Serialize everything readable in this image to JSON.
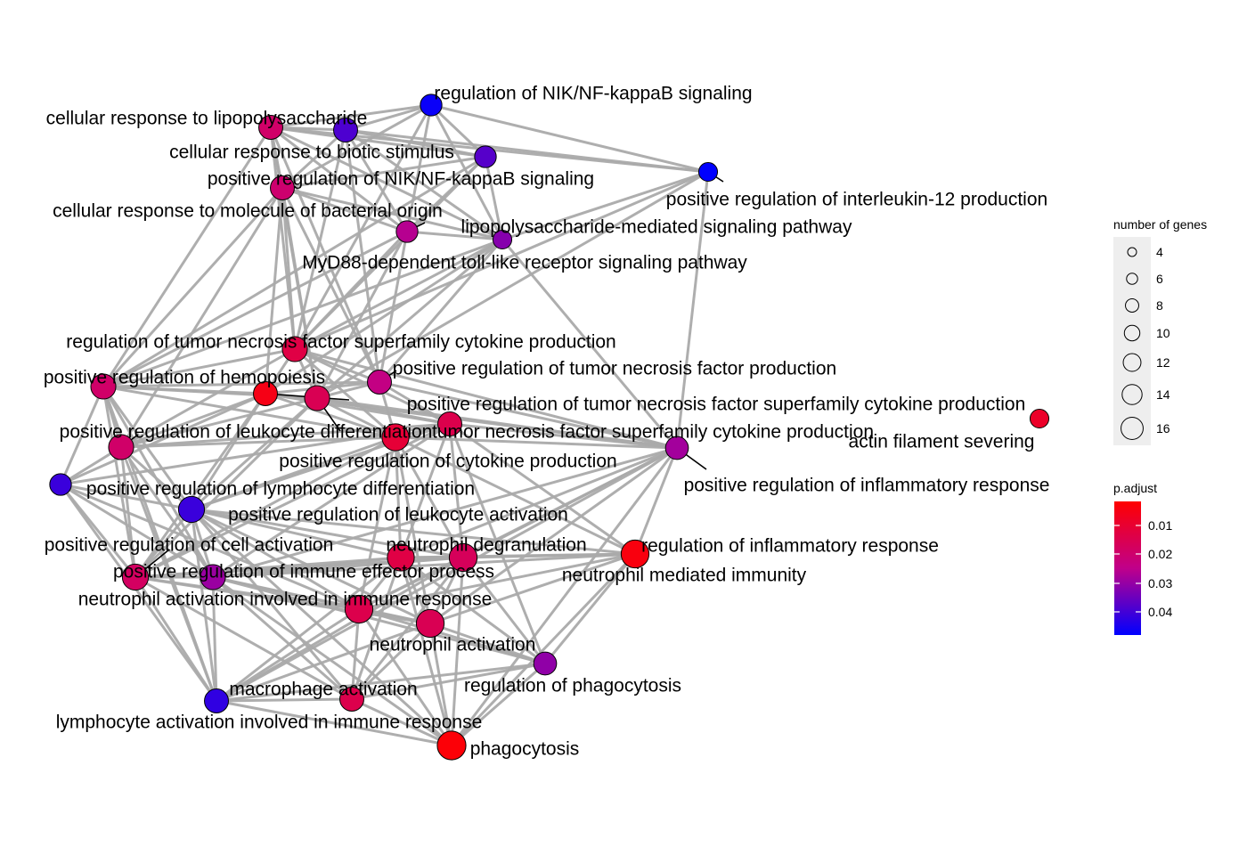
{
  "chart_data": {
    "type": "network",
    "colors": {
      "edge": "#aaaaaa",
      "low": "#ff0000",
      "high": "#0000ff"
    },
    "nodes": [
      {
        "id": "nfkb_reg",
        "label": "regulation of NIK/NF-kappaB signaling",
        "size": 5,
        "padj": 0.045
      },
      {
        "id": "lps_resp",
        "label": "cellular response to lipopolysaccharide",
        "size": 7,
        "padj": 0.021
      },
      {
        "id": "biotic",
        "label": "cellular response to biotic stimulus",
        "size": 7,
        "padj": 0.038
      },
      {
        "id": "nfkb_pos",
        "label": "positive regulation of NIK/NF-kappaB signaling",
        "size": 5,
        "padj": 0.037
      },
      {
        "id": "il12",
        "label": "positive regulation of interleukin-12 production",
        "size": 3,
        "padj": 0.046
      },
      {
        "id": "bact",
        "label": "cellular response to molecule of bacterial origin",
        "size": 7,
        "padj": 0.022
      },
      {
        "id": "lps_path",
        "label": "lipopolysaccharide-mediated signaling pathway",
        "size": 5,
        "padj": 0.027
      },
      {
        "id": "myd88",
        "label": "MyD88-dependent toll-like receptor signaling pathway",
        "size": 3,
        "padj": 0.032
      },
      {
        "id": "tnfsf_reg",
        "label": "regulation of tumor necrosis factor superfamily cytokine production",
        "size": 8,
        "padj": 0.016
      },
      {
        "id": "hemo",
        "label": "positive regulation of hemopoiesis",
        "size": 8,
        "padj": 0.021
      },
      {
        "id": "tnf_pos",
        "label": "positive regulation of tumor necrosis factor production",
        "size": 7,
        "padj": 0.025
      },
      {
        "id": "tnfsf_pos",
        "label": "positive regulation of tumor necrosis factor superfamily cytokine production",
        "size": 8,
        "padj": 0.018
      },
      {
        "id": "tnfsf_pos2",
        "label": "",
        "size": 7,
        "padj": 0.009
      },
      {
        "id": "actin",
        "label": "actin filament severing",
        "size": 3,
        "padj": 0.012
      },
      {
        "id": "leuk_diff",
        "label": "positive regulation of leukocyte differentiation",
        "size": 8,
        "padj": 0.021
      },
      {
        "id": "tnfsf_prod",
        "label": "tumor necrosis factor superfamily cytokine production",
        "size": 10,
        "padj": 0.014
      },
      {
        "id": "cyto",
        "label": "positive regulation of cytokine production",
        "size": 7,
        "padj": 0.017
      },
      {
        "id": "inflam_pos",
        "label": "positive regulation of inflammatory response",
        "size": 6,
        "padj": 0.029
      },
      {
        "id": "lymph_diff",
        "label": "positive regulation of lymphocyte differentiation",
        "size": 5,
        "padj": 0.04
      },
      {
        "id": "leuk_act",
        "label": "positive regulation of leukocyte activation",
        "size": 9,
        "padj": 0.04
      },
      {
        "id": "cell_act",
        "label": "positive regulation of cell activation",
        "size": 9,
        "padj": 0.02
      },
      {
        "id": "degran",
        "label": "neutrophil degranulation",
        "size": 10,
        "padj": 0.016
      },
      {
        "id": "inflam_reg",
        "label": "regulation of inflammatory response",
        "size": 11,
        "padj": 0.008
      },
      {
        "id": "effector",
        "label": "positive regulation of immune effector process",
        "size": 8,
        "padj": 0.03
      },
      {
        "id": "neut_imm",
        "label": "neutrophil mediated immunity",
        "size": 11,
        "padj": 0.019
      },
      {
        "id": "neut_act_imm",
        "label": "neutrophil activation involved in immune response",
        "size": 11,
        "padj": 0.017
      },
      {
        "id": "neut_act",
        "label": "neutrophil activation",
        "size": 11,
        "padj": 0.018
      },
      {
        "id": "phago_reg",
        "label": "regulation of phagocytosis",
        "size": 6,
        "padj": 0.031
      },
      {
        "id": "macro",
        "label": "macrophage activation",
        "size": 7,
        "padj": 0.041
      },
      {
        "id": "lymph_imm",
        "label": "lymphocyte activation involved in immune response",
        "size": 7,
        "padj": 0.017
      },
      {
        "id": "phago",
        "label": "phagocytosis",
        "size": 12,
        "padj": 0.007
      }
    ],
    "edges": [
      [
        "nfkb_reg",
        "lps_resp"
      ],
      [
        "nfkb_reg",
        "biotic"
      ],
      [
        "nfkb_reg",
        "nfkb_pos"
      ],
      [
        "nfkb_reg",
        "il12"
      ],
      [
        "nfkb_reg",
        "lps_path"
      ],
      [
        "nfkb_reg",
        "myd88"
      ],
      [
        "nfkb_reg",
        "bact"
      ],
      [
        "nfkb_reg",
        "tnfsf_reg"
      ],
      [
        "lps_resp",
        "biotic"
      ],
      [
        "lps_resp",
        "nfkb_pos"
      ],
      [
        "lps_resp",
        "bact"
      ],
      [
        "lps_resp",
        "lps_path"
      ],
      [
        "lps_resp",
        "myd88"
      ],
      [
        "lps_resp",
        "tnfsf_reg"
      ],
      [
        "lps_resp",
        "hemo"
      ],
      [
        "lps_resp",
        "tnfsf_pos"
      ],
      [
        "lps_resp",
        "tnf_pos"
      ],
      [
        "lps_resp",
        "il12"
      ],
      [
        "biotic",
        "nfkb_pos"
      ],
      [
        "biotic",
        "bact"
      ],
      [
        "biotic",
        "lps_path"
      ],
      [
        "biotic",
        "myd88"
      ],
      [
        "biotic",
        "tnfsf_reg"
      ],
      [
        "biotic",
        "il12"
      ],
      [
        "biotic",
        "tnf_pos"
      ],
      [
        "nfkb_pos",
        "bact"
      ],
      [
        "nfkb_pos",
        "lps_path"
      ],
      [
        "nfkb_pos",
        "myd88"
      ],
      [
        "nfkb_pos",
        "tnfsf_reg"
      ],
      [
        "nfkb_pos",
        "hemo"
      ],
      [
        "il12",
        "tnfsf_reg"
      ],
      [
        "il12",
        "inflam_pos"
      ],
      [
        "il12",
        "tnfsf_pos"
      ],
      [
        "il12",
        "myd88"
      ],
      [
        "bact",
        "lps_path"
      ],
      [
        "bact",
        "myd88"
      ],
      [
        "bact",
        "tnfsf_reg"
      ],
      [
        "bact",
        "hemo"
      ],
      [
        "bact",
        "tnf_pos"
      ],
      [
        "bact",
        "tnfsf_pos"
      ],
      [
        "bact",
        "tnfsf_pos2"
      ],
      [
        "bact",
        "leuk_diff"
      ],
      [
        "lps_path",
        "myd88"
      ],
      [
        "lps_path",
        "tnfsf_reg"
      ],
      [
        "lps_path",
        "tnf_pos"
      ],
      [
        "lps_path",
        "tnfsf_pos"
      ],
      [
        "lps_path",
        "hemo"
      ],
      [
        "myd88",
        "tnfsf_reg"
      ],
      [
        "myd88",
        "tnf_pos"
      ],
      [
        "myd88",
        "tnfsf_pos2"
      ],
      [
        "myd88",
        "inflam_pos"
      ],
      [
        "myd88",
        "hemo"
      ],
      [
        "myd88",
        "tnfsf_pos"
      ],
      [
        "tnfsf_reg",
        "hemo"
      ],
      [
        "tnfsf_reg",
        "tnf_pos"
      ],
      [
        "tnfsf_reg",
        "tnfsf_pos"
      ],
      [
        "tnfsf_reg",
        "tnfsf_pos2"
      ],
      [
        "tnfsf_reg",
        "tnfsf_prod"
      ],
      [
        "tnfsf_reg",
        "leuk_diff"
      ],
      [
        "tnfsf_reg",
        "cyto"
      ],
      [
        "tnfsf_reg",
        "inflam_pos"
      ],
      [
        "hemo",
        "tnf_pos"
      ],
      [
        "hemo",
        "tnfsf_pos"
      ],
      [
        "hemo",
        "tnfsf_pos2"
      ],
      [
        "hemo",
        "leuk_diff"
      ],
      [
        "hemo",
        "lymph_diff"
      ],
      [
        "hemo",
        "leuk_act"
      ],
      [
        "hemo",
        "cell_act"
      ],
      [
        "hemo",
        "tnfsf_prod"
      ],
      [
        "hemo",
        "effector"
      ],
      [
        "hemo",
        "macro"
      ],
      [
        "tnf_pos",
        "tnfsf_pos"
      ],
      [
        "tnf_pos",
        "tnfsf_pos2"
      ],
      [
        "tnf_pos",
        "tnfsf_prod"
      ],
      [
        "tnf_pos",
        "cyto"
      ],
      [
        "tnf_pos",
        "inflam_pos"
      ],
      [
        "tnfsf_pos",
        "tnfsf_pos2"
      ],
      [
        "tnfsf_pos",
        "tnfsf_prod"
      ],
      [
        "tnfsf_pos",
        "leuk_diff"
      ],
      [
        "tnfsf_pos",
        "cyto"
      ],
      [
        "tnfsf_pos",
        "leuk_act"
      ],
      [
        "tnfsf_pos",
        "inflam_pos"
      ],
      [
        "tnfsf_pos",
        "cell_act"
      ],
      [
        "tnfsf_pos2",
        "tnfsf_prod"
      ],
      [
        "tnfsf_pos2",
        "leuk_diff"
      ],
      [
        "tnfsf_pos2",
        "cyto"
      ],
      [
        "tnfsf_pos2",
        "leuk_act"
      ],
      [
        "tnfsf_pos2",
        "cell_act"
      ],
      [
        "tnfsf_pos2",
        "inflam_pos"
      ],
      [
        "tnfsf_pos2",
        "lymph_diff"
      ],
      [
        "leuk_diff",
        "tnfsf_prod"
      ],
      [
        "leuk_diff",
        "lymph_diff"
      ],
      [
        "leuk_diff",
        "leuk_act"
      ],
      [
        "leuk_diff",
        "cell_act"
      ],
      [
        "leuk_diff",
        "effector"
      ],
      [
        "leuk_diff",
        "cyto"
      ],
      [
        "leuk_diff",
        "macro"
      ],
      [
        "tnfsf_prod",
        "cyto"
      ],
      [
        "tnfsf_prod",
        "inflam_pos"
      ],
      [
        "tnfsf_prod",
        "leuk_act"
      ],
      [
        "tnfsf_prod",
        "cell_act"
      ],
      [
        "tnfsf_prod",
        "degran"
      ],
      [
        "tnfsf_prod",
        "inflam_reg"
      ],
      [
        "tnfsf_prod",
        "neut_imm"
      ],
      [
        "tnfsf_prod",
        "neut_act_imm"
      ],
      [
        "tnfsf_prod",
        "neut_act"
      ],
      [
        "cyto",
        "inflam_pos"
      ],
      [
        "cyto",
        "leuk_act"
      ],
      [
        "cyto",
        "cell_act"
      ],
      [
        "cyto",
        "effector"
      ],
      [
        "cyto",
        "degran"
      ],
      [
        "cyto",
        "inflam_reg"
      ],
      [
        "cyto",
        "neut_imm"
      ],
      [
        "cyto",
        "phago_reg"
      ],
      [
        "cyto",
        "lymph_diff"
      ],
      [
        "inflam_pos",
        "inflam_reg"
      ],
      [
        "inflam_pos",
        "degran"
      ],
      [
        "inflam_pos",
        "neut_imm"
      ],
      [
        "inflam_pos",
        "neut_act_imm"
      ],
      [
        "inflam_pos",
        "neut_act"
      ],
      [
        "inflam_pos",
        "effector"
      ],
      [
        "inflam_pos",
        "macro"
      ],
      [
        "inflam_pos",
        "phago"
      ],
      [
        "lymph_diff",
        "leuk_act"
      ],
      [
        "lymph_diff",
        "cell_act"
      ],
      [
        "lymph_diff",
        "effector"
      ],
      [
        "lymph_diff",
        "neut_act_imm"
      ],
      [
        "lymph_diff",
        "macro"
      ],
      [
        "leuk_act",
        "cell_act"
      ],
      [
        "leuk_act",
        "effector"
      ],
      [
        "leuk_act",
        "degran"
      ],
      [
        "leuk_act",
        "neut_imm"
      ],
      [
        "leuk_act",
        "neut_act_imm"
      ],
      [
        "leuk_act",
        "neut_act"
      ],
      [
        "leuk_act",
        "macro"
      ],
      [
        "leuk_act",
        "lymph_imm"
      ],
      [
        "leuk_act",
        "phago"
      ],
      [
        "leuk_act",
        "inflam_reg"
      ],
      [
        "cell_act",
        "effector"
      ],
      [
        "cell_act",
        "degran"
      ],
      [
        "cell_act",
        "neut_imm"
      ],
      [
        "cell_act",
        "neut_act_imm"
      ],
      [
        "cell_act",
        "macro"
      ],
      [
        "cell_act",
        "lymph_imm"
      ],
      [
        "cell_act",
        "neut_act"
      ],
      [
        "degran",
        "neut_imm"
      ],
      [
        "degran",
        "neut_act_imm"
      ],
      [
        "degran",
        "neut_act"
      ],
      [
        "degran",
        "effector"
      ],
      [
        "degran",
        "inflam_reg"
      ],
      [
        "degran",
        "phago_reg"
      ],
      [
        "degran",
        "phago"
      ],
      [
        "degran",
        "lymph_imm"
      ],
      [
        "degran",
        "macro"
      ],
      [
        "inflam_reg",
        "neut_imm"
      ],
      [
        "inflam_reg",
        "effector"
      ],
      [
        "inflam_reg",
        "neut_act_imm"
      ],
      [
        "inflam_reg",
        "neut_act"
      ],
      [
        "inflam_reg",
        "phago"
      ],
      [
        "inflam_reg",
        "phago_reg"
      ],
      [
        "effector",
        "neut_imm"
      ],
      [
        "effector",
        "neut_act_imm"
      ],
      [
        "effector",
        "neut_act"
      ],
      [
        "effector",
        "macro"
      ],
      [
        "effector",
        "lymph_imm"
      ],
      [
        "effector",
        "phago_reg"
      ],
      [
        "effector",
        "phago"
      ],
      [
        "neut_imm",
        "neut_act_imm"
      ],
      [
        "neut_imm",
        "neut_act"
      ],
      [
        "neut_imm",
        "phago_reg"
      ],
      [
        "neut_imm",
        "phago"
      ],
      [
        "neut_imm",
        "lymph_imm"
      ],
      [
        "neut_imm",
        "macro"
      ],
      [
        "neut_act_imm",
        "neut_act"
      ],
      [
        "neut_act_imm",
        "macro"
      ],
      [
        "neut_act_imm",
        "lymph_imm"
      ],
      [
        "neut_act_imm",
        "phago"
      ],
      [
        "neut_act_imm",
        "phago_reg"
      ],
      [
        "neut_act",
        "phago_reg"
      ],
      [
        "neut_act",
        "phago"
      ],
      [
        "neut_act",
        "lymph_imm"
      ],
      [
        "neut_act",
        "macro"
      ],
      [
        "phago_reg",
        "phago"
      ],
      [
        "phago_reg",
        "lymph_imm"
      ],
      [
        "phago_reg",
        "macro"
      ],
      [
        "macro",
        "lymph_imm"
      ],
      [
        "macro",
        "phago"
      ],
      [
        "lymph_imm",
        "phago"
      ]
    ],
    "legends": {
      "size": {
        "title": "number of genes",
        "values": [
          4,
          6,
          8,
          10,
          12,
          14,
          16
        ]
      },
      "color": {
        "title": "p.adjust",
        "ticks": [
          0.01,
          0.02,
          0.03,
          0.04
        ],
        "min": 0.006,
        "max": 0.046
      }
    }
  }
}
